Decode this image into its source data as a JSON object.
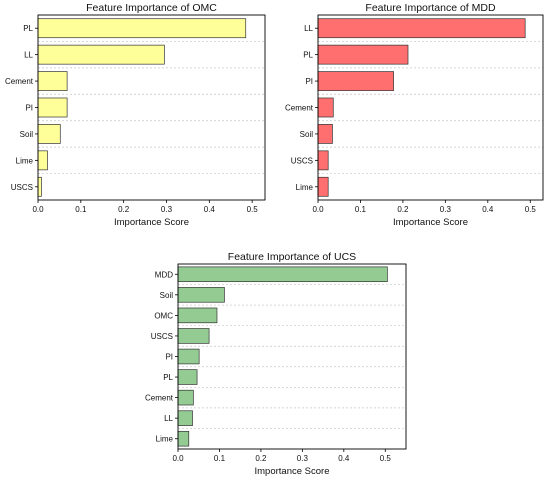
{
  "chart_data": [
    {
      "type": "bar",
      "orientation": "horizontal",
      "title": "Feature Importance of OMC",
      "xlabel": "Importance Score",
      "ylabel": "",
      "categories": [
        "PL",
        "LL",
        "Cement",
        "PI",
        "Soil",
        "Lime",
        "USCS"
      ],
      "values": [
        0.485,
        0.295,
        0.068,
        0.068,
        0.052,
        0.022,
        0.008
      ],
      "xlim": [
        0,
        0.53
      ],
      "xticks": [
        "0.0",
        "0.1",
        "0.2",
        "0.3",
        "0.4",
        "0.5"
      ],
      "grid": "horizontal dashed",
      "color": "#ffff99"
    },
    {
      "type": "bar",
      "orientation": "horizontal",
      "title": "Feature Importance of MDD",
      "xlabel": "Importance Score",
      "ylabel": "",
      "categories": [
        "LL",
        "PL",
        "PI",
        "Cement",
        "Soil",
        "USCS",
        "Lime"
      ],
      "values": [
        0.488,
        0.212,
        0.178,
        0.036,
        0.034,
        0.024,
        0.024
      ],
      "xlim": [
        0,
        0.53
      ],
      "xticks": [
        "0.0",
        "0.1",
        "0.2",
        "0.3",
        "0.4",
        "0.5"
      ],
      "grid": "horizontal dashed",
      "color": "#ff6f6f"
    },
    {
      "type": "bar",
      "orientation": "horizontal",
      "title": "Feature Importance of UCS",
      "xlabel": "Importance Score",
      "ylabel": "",
      "categories": [
        "MDD",
        "Soil",
        "OMC",
        "USCS",
        "PI",
        "PL",
        "Cement",
        "LL",
        "Lime"
      ],
      "values": [
        0.505,
        0.112,
        0.094,
        0.075,
        0.051,
        0.046,
        0.037,
        0.035,
        0.026
      ],
      "xlim": [
        0,
        0.55
      ],
      "xticks": [
        "0.0",
        "0.1",
        "0.2",
        "0.3",
        "0.4",
        "0.5"
      ],
      "grid": "horizontal dashed",
      "color": "#93cb93"
    }
  ]
}
